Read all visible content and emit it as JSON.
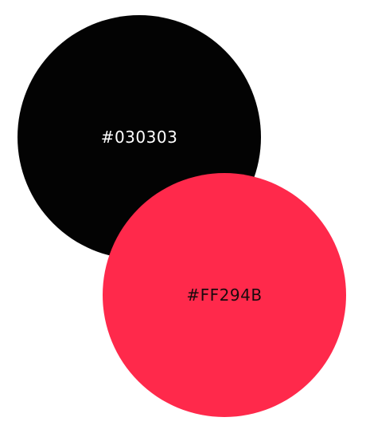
{
  "swatches": [
    {
      "hex_label": "#030303",
      "color": "#030303",
      "text_color": "#ffffff"
    },
    {
      "hex_label": "#FF294B",
      "color": "#FF294B",
      "text_color": "#1a0a0d"
    }
  ]
}
